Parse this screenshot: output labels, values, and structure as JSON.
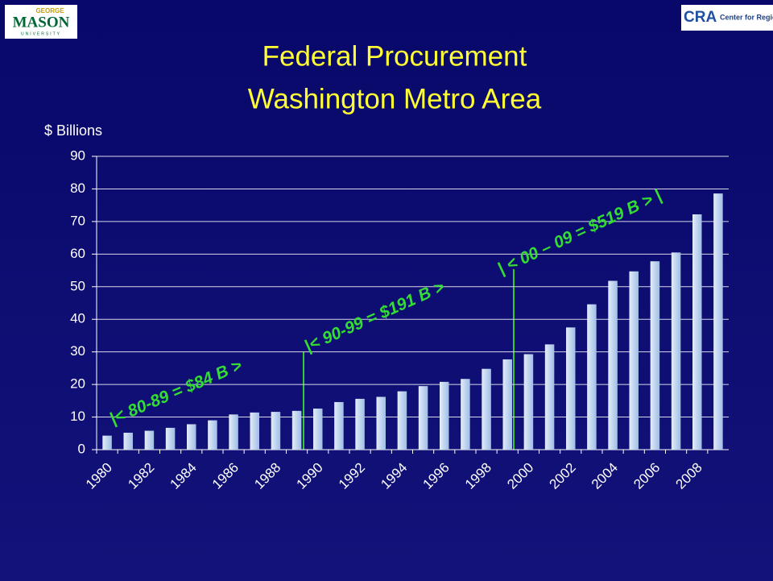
{
  "logos": [
    "GEORGE",
    "MASON",
    "UNIVERSITY",
    "CRA",
    "Center for Regional Analys"
  ],
  "chart_data": {
    "type": "bar",
    "title": [
      "Federal Procurement",
      "Washington Metro Area"
    ],
    "y_label": "$ Billions",
    "categories": [
      "1980",
      null,
      "1982",
      null,
      "1984",
      null,
      "1986",
      null,
      "1988",
      null,
      "1990",
      null,
      "1992",
      null,
      "1994",
      null,
      "1996",
      null,
      "1998",
      null,
      "2000",
      null,
      "2002",
      null,
      "2004",
      null,
      "2006",
      null,
      "2008",
      null
    ],
    "values": [
      4.3,
      5.2,
      5.8,
      6.7,
      7.8,
      9.0,
      10.8,
      11.4,
      11.6,
      11.9,
      12.6,
      14.6,
      15.6,
      16.2,
      17.9,
      19.5,
      20.8,
      21.7,
      24.8,
      27.7,
      29.3,
      32.3,
      37.5,
      44.6,
      51.8,
      54.7,
      57.8,
      60.5,
      72.2,
      78.6
    ],
    "color": "#c6d9f1",
    "ylim": [
      0,
      90
    ],
    "yticks": [
      0,
      10,
      20,
      30,
      40,
      50,
      60,
      70,
      80,
      90
    ],
    "grid": true,
    "annotations": [
      "|<  80-89 = $84 B >",
      "|< 90-99 = $191 B >",
      "|  <  00 – 09 = $519 B > |"
    ]
  }
}
